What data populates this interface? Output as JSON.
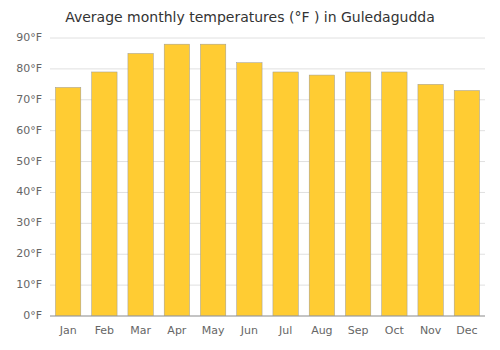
{
  "chart_data": {
    "type": "bar",
    "title": "Average monthly temperatures (°F ) in Guledagudda",
    "categories": [
      "Jan",
      "Feb",
      "Mar",
      "Apr",
      "May",
      "Jun",
      "Jul",
      "Aug",
      "Sep",
      "Oct",
      "Nov",
      "Dec"
    ],
    "values": [
      74,
      79,
      85,
      88,
      88,
      82,
      79,
      78,
      79,
      79,
      75,
      73
    ],
    "color": "#FFCC33",
    "ylim": [
      0,
      90
    ],
    "yticks": [
      {
        "value": 0,
        "label": "0°F"
      },
      {
        "value": 10,
        "label": "10°F"
      },
      {
        "value": 20,
        "label": "20°F"
      },
      {
        "value": 30,
        "label": "30°F"
      },
      {
        "value": 40,
        "label": "40°F"
      },
      {
        "value": 50,
        "label": "50°F"
      },
      {
        "value": 60,
        "label": "60°F"
      },
      {
        "value": 70,
        "label": "70°F"
      },
      {
        "value": 80,
        "label": "80°F"
      },
      {
        "value": 90,
        "label": "90°F"
      }
    ],
    "grid": true
  }
}
